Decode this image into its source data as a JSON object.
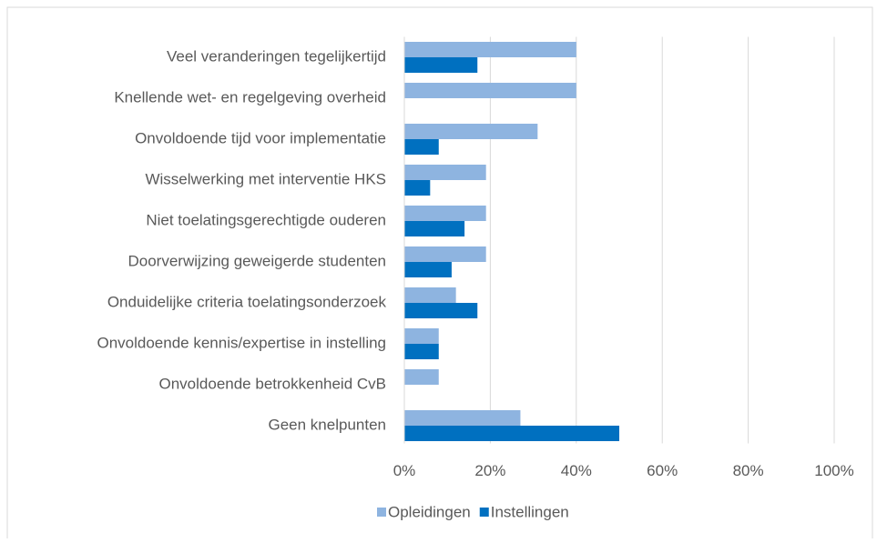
{
  "chart_data": {
    "type": "bar",
    "orientation": "horizontal",
    "categories": [
      "Veel veranderingen tegelijkertijd",
      "Knellende wet- en regelgeving overheid",
      "Onvoldoende tijd voor implementatie",
      "Wisselwerking met interventie HKS",
      "Niet toelatingsgerechtigde ouderen",
      "Doorverwijzing geweigerde studenten",
      "Onduidelijke criteria toelatingsonderzoek",
      "Onvoldoende kennis/expertise in instelling",
      "Onvoldoende betrokkenheid CvB",
      "Geen knelpunten"
    ],
    "series": [
      {
        "name": "Opleidingen",
        "color": "#8eb4e0",
        "values": [
          40,
          40,
          31,
          19,
          19,
          19,
          12,
          8,
          8,
          27
        ]
      },
      {
        "name": "Instellingen",
        "color": "#0070c0",
        "values": [
          17,
          0,
          8,
          6,
          14,
          11,
          17,
          8,
          0,
          50
        ]
      }
    ],
    "xlim": [
      0,
      100
    ],
    "xticks": [
      {
        "value": 0,
        "label": "0%"
      },
      {
        "value": 20,
        "label": "20%"
      },
      {
        "value": 40,
        "label": "40%"
      },
      {
        "value": 60,
        "label": "60%"
      },
      {
        "value": 80,
        "label": "80%"
      },
      {
        "value": 100,
        "label": "100%"
      }
    ],
    "grid": true,
    "legend": "bottom"
  }
}
